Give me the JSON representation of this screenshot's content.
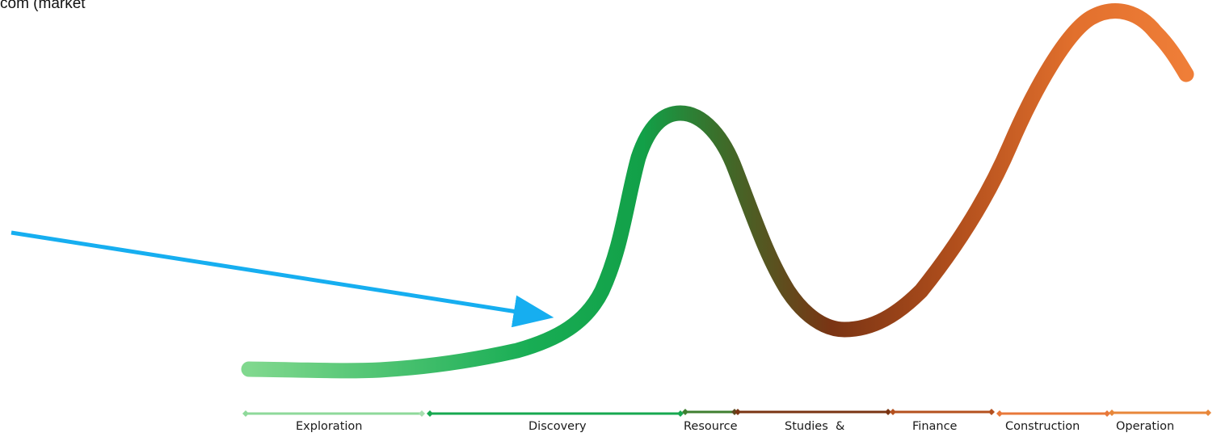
{
  "corner_text": "com (market",
  "stages": [
    {
      "label": "Exploration",
      "color": "#7fd68c"
    },
    {
      "label": "Discovery",
      "color": "#17a850"
    },
    {
      "label": "Resource",
      "color": "#3a7a2a"
    },
    {
      "label": "Studies  &",
      "color": "#7a3a14"
    },
    {
      "label": "Finance",
      "color": "#b8541c"
    },
    {
      "label": "Construction",
      "color": "#e3752e"
    },
    {
      "label": "Operation",
      "color": "#e8873a"
    }
  ],
  "colors": {
    "curve_start": "#7fd68c",
    "curve_green": "#10a54a",
    "curve_brown": "#8a3a12",
    "curve_end": "#ec7a35",
    "arrow": "#16aef0"
  }
}
